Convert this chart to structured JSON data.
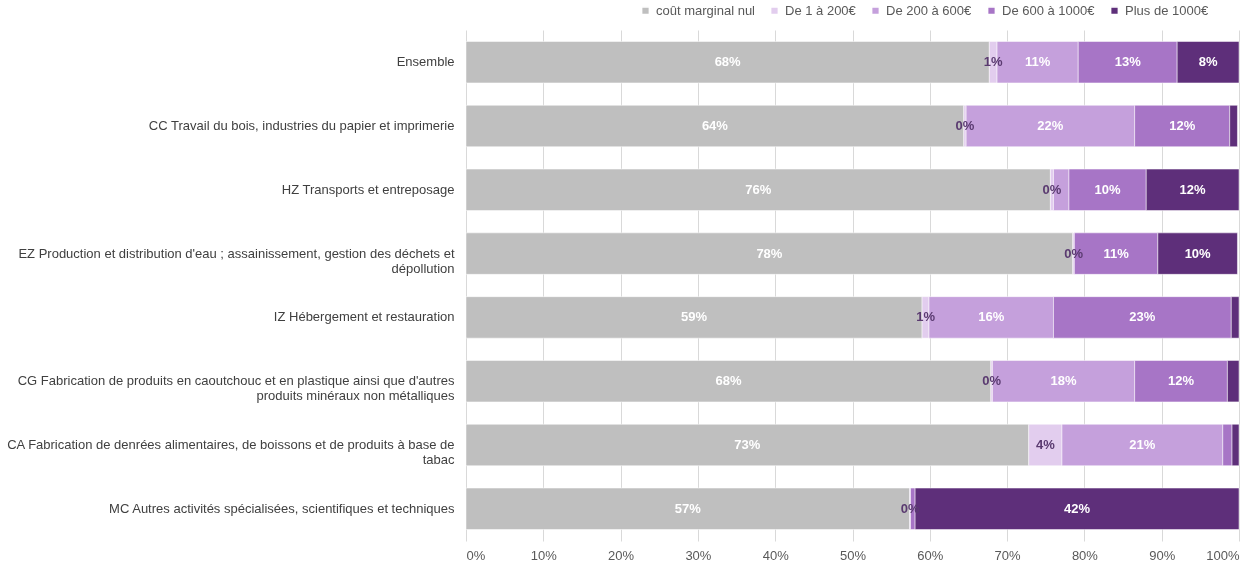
{
  "chart_data": {
    "type": "bar",
    "orientation": "horizontal",
    "stacked": true,
    "categories": [
      "Ensemble",
      "CC Travail du bois, industries du papier et imprimerie",
      "HZ Transports et entreposage",
      "EZ Production et distribution d'eau ; assainissement, gestion des déchets et dépollution",
      "IZ Hébergement et restauration",
      "CG Fabrication de produits en caoutchouc et en plastique ainsi que d'autres produits minéraux non métalliques",
      "CA Fabrication de denrées alimentaires, de boissons et de produits à base de tabac",
      "MC Autres activités spécialisées, scientifiques et techniques"
    ],
    "series": [
      {
        "name": "coût marginal nul",
        "color": "#bfbfbf",
        "values": [
          67.7,
          64.4,
          75.6,
          78.5,
          59,
          67.9,
          72.8,
          57.4
        ],
        "value_labels": [
          "68%",
          "64%",
          "76%",
          "78%",
          "59%",
          "68%",
          "73%",
          "57%"
        ]
      },
      {
        "name": "De 1 à 200€",
        "color": "#e2cdee",
        "values": [
          1,
          0.3,
          0.4,
          0.2,
          0.9,
          0.2,
          4.3,
          0.1
        ],
        "value_labels": [
          "1%",
          "0%",
          "0%",
          "0%",
          "1%",
          "0%",
          "4%",
          "0%"
        ]
      },
      {
        "name": "De 200 à 600€",
        "color": "#c5a0dc",
        "values": [
          10.5,
          21.8,
          2,
          null,
          16.1,
          18.4,
          20.8,
          0
        ],
        "value_labels": [
          "11%",
          "22%",
          null,
          null,
          "16%",
          "18%",
          "21%",
          null
        ]
      },
      {
        "name": "De 600 à 1000€",
        "color": "#a775c6",
        "values": [
          12.8,
          12.3,
          10,
          10.8,
          23,
          12,
          1.2,
          0.6
        ],
        "value_labels": [
          "13%",
          "12%",
          "10%",
          "11%",
          "23%",
          "12%",
          null,
          null
        ]
      },
      {
        "name": "Plus de 1000€",
        "color": "#5e2f7a",
        "values": [
          8,
          1,
          12,
          10.3,
          1,
          1.5,
          0.9,
          41.9
        ],
        "value_labels": [
          "8%",
          null,
          "12%",
          "10%",
          null,
          null,
          null,
          "42%"
        ]
      }
    ],
    "xlim": [
      0,
      100
    ],
    "xticks": [
      {
        "value": 0,
        "label": "0%"
      },
      {
        "value": 10,
        "label": "10%"
      },
      {
        "value": 20,
        "label": "20%"
      },
      {
        "value": 30,
        "label": "30%"
      },
      {
        "value": 40,
        "label": "40%"
      },
      {
        "value": 50,
        "label": "50%"
      },
      {
        "value": 60,
        "label": "60%"
      },
      {
        "value": 70,
        "label": "70%"
      },
      {
        "value": 80,
        "label": "80%"
      },
      {
        "value": 90,
        "label": "90%"
      },
      {
        "value": 100,
        "label": "100%"
      }
    ],
    "grid": "x",
    "legend": "top right"
  }
}
